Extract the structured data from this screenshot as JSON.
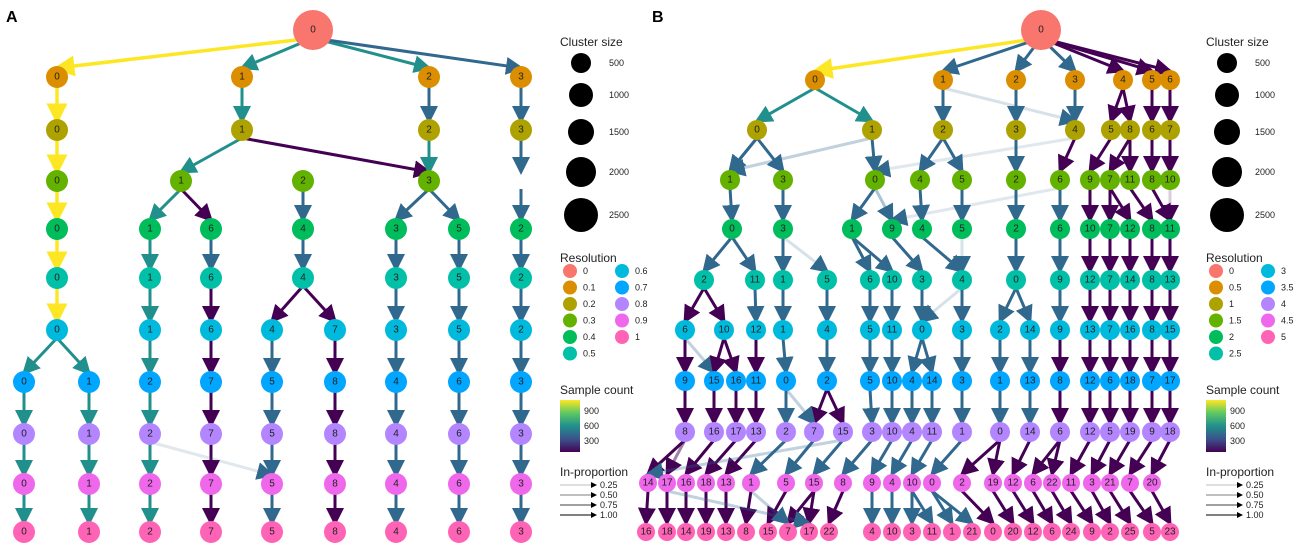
{
  "panels": [
    {
      "letter": "A",
      "levels": [
        "0",
        "0.1",
        "0.2",
        "0.3",
        "0.4",
        "0.5",
        "0.6",
        "0.7",
        "0.8",
        "0.9",
        "1"
      ],
      "rows": [
        [
          "0"
        ],
        [
          "0",
          "1",
          "2",
          "3"
        ],
        [
          "0",
          "1",
          "2",
          "3"
        ],
        [
          "0",
          "1",
          "2",
          "3"
        ],
        [
          "0",
          "1",
          "6",
          "4",
          "3",
          "5",
          "2"
        ],
        [
          "0",
          "1",
          "6",
          "4",
          "3",
          "5",
          "2"
        ],
        [
          "0",
          "1",
          "6",
          "4",
          "7",
          "3",
          "5",
          "2"
        ],
        [
          "0",
          "1",
          "2",
          "7",
          "5",
          "8",
          "4",
          "6",
          "3"
        ],
        [
          "0",
          "1",
          "2",
          "7",
          "5",
          "8",
          "4",
          "6",
          "3"
        ],
        [
          "0",
          "1",
          "2",
          "7",
          "5",
          "8",
          "4",
          "6",
          "3"
        ],
        [
          "0",
          "1",
          "2",
          "7",
          "5",
          "8",
          "4",
          "6",
          "3"
        ]
      ],
      "legend": {
        "size_title": "Cluster size",
        "sizes": [
          "500",
          "1000",
          "1500",
          "2000",
          "2500"
        ],
        "resolution_title": "Resolution",
        "resolutions": [
          "0",
          "0.1",
          "0.2",
          "0.3",
          "0.4",
          "0.5",
          "0.6",
          "0.7",
          "0.8",
          "0.9",
          "1"
        ],
        "count_title": "Sample count",
        "count_ticks": [
          "900",
          "600",
          "300"
        ],
        "prop_title": "In-proportion",
        "props": [
          "0.25",
          "0.50",
          "0.75",
          "1.00"
        ]
      }
    },
    {
      "letter": "B",
      "levels": [
        "0",
        "0.5",
        "1",
        "1.5",
        "2",
        "2.5",
        "3",
        "3.5",
        "4",
        "4.5",
        "5"
      ],
      "rows": [
        [
          "0"
        ],
        [
          "0",
          "1",
          "2",
          "3",
          "4",
          "5",
          "6"
        ],
        [
          "0",
          "1",
          "2",
          "3",
          "4",
          "5",
          "8",
          "6",
          "7"
        ],
        [
          "1",
          "3",
          "0",
          "4",
          "5",
          "2",
          "6",
          "9",
          "7",
          "11",
          "8",
          "10"
        ],
        [
          "0",
          "3",
          "1",
          "9",
          "4",
          "5",
          "2",
          "6",
          "10",
          "7",
          "12",
          "8",
          "11"
        ],
        [
          "2",
          "11",
          "1",
          "5",
          "6",
          "10",
          "3",
          "4",
          "0",
          "9",
          "12",
          "7",
          "14",
          "8",
          "13"
        ],
        [
          "6",
          "10",
          "12",
          "1",
          "4",
          "5",
          "11",
          "0",
          "3",
          "2",
          "14",
          "9",
          "13",
          "7",
          "16",
          "8",
          "15"
        ],
        [
          "9",
          "15",
          "16",
          "11",
          "0",
          "2",
          "5",
          "10",
          "4",
          "14",
          "3",
          "1",
          "13",
          "8",
          "12",
          "6",
          "18",
          "7",
          "17"
        ],
        [
          "8",
          "16",
          "17",
          "13",
          "2",
          "7",
          "15",
          "3",
          "10",
          "4",
          "11",
          "1",
          "0",
          "14",
          "6",
          "12",
          "5",
          "19",
          "9",
          "18"
        ],
        [
          "14",
          "17",
          "16",
          "18",
          "13",
          "1",
          "5",
          "15",
          "8",
          "9",
          "4",
          "10",
          "0",
          "2",
          "19",
          "12",
          "6",
          "22",
          "11",
          "3",
          "21",
          "7",
          "20"
        ],
        [
          "16",
          "18",
          "14",
          "19",
          "13",
          "8",
          "15",
          "7",
          "17",
          "22",
          "4",
          "10",
          "3",
          "11",
          "1",
          "21",
          "0",
          "20",
          "12",
          "6",
          "24",
          "9",
          "2",
          "25",
          "5",
          "23"
        ]
      ],
      "legend": {
        "size_title": "Cluster size",
        "sizes": [
          "500",
          "1000",
          "1500",
          "2000",
          "2500"
        ],
        "resolution_title": "Resolution",
        "resolutions": [
          "0",
          "0.5",
          "1",
          "1.5",
          "2",
          "2.5",
          "3",
          "3.5",
          "4",
          "4.5",
          "5"
        ],
        "count_title": "Sample count",
        "count_ticks": [
          "900",
          "600",
          "300"
        ],
        "prop_title": "In-proportion",
        "props": [
          "0.25",
          "0.50",
          "0.75",
          "1.00"
        ]
      }
    }
  ],
  "colors": {
    "level_palette": [
      "#F8766D",
      "#DB8E00",
      "#AEA200",
      "#64B200",
      "#00BD5C",
      "#00C1A7",
      "#00BADE",
      "#00A6FF",
      "#B385FF",
      "#EF67EB",
      "#FF63B6"
    ],
    "edge_high": "#FDE725",
    "edge_mid": "#21908C",
    "edge_low": "#440154"
  }
}
